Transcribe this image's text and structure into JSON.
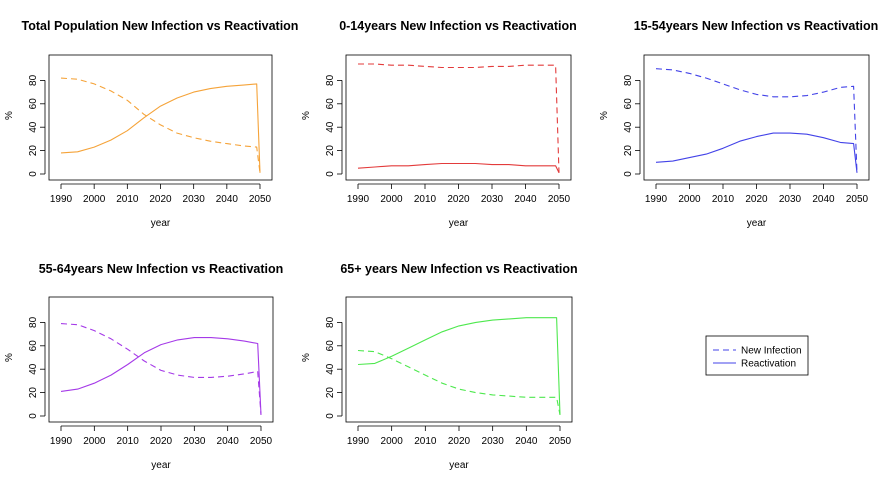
{
  "chart_data": [
    {
      "type": "line",
      "title": "Total Population New Infection vs Reactivation",
      "xlabel": "year",
      "ylabel": "%",
      "xlim": [
        1990,
        2050
      ],
      "ylim": [
        0,
        100
      ],
      "xticks": [
        1990,
        2000,
        2010,
        2020,
        2030,
        2040,
        2050
      ],
      "yticks": [
        0,
        20,
        40,
        60,
        80
      ],
      "color": "#f5a339",
      "x": [
        1990,
        1995,
        2000,
        2005,
        2010,
        2015,
        2020,
        2025,
        2030,
        2035,
        2040,
        2045,
        2049,
        2050
      ],
      "series": [
        {
          "name": "New Infection",
          "linestyle": "dashed",
          "values": [
            82,
            81,
            77,
            71,
            63,
            51,
            42,
            35,
            31,
            28,
            26,
            24,
            23,
            1
          ]
        },
        {
          "name": "Reactivation",
          "linestyle": "solid",
          "values": [
            18,
            19,
            23,
            29,
            37,
            48,
            58,
            65,
            70,
            73,
            75,
            76,
            77,
            1
          ]
        }
      ]
    },
    {
      "type": "line",
      "title": "0-14years  New Infection vs Reactivation",
      "xlabel": "year",
      "ylabel": "%",
      "xlim": [
        1990,
        2050
      ],
      "ylim": [
        0,
        100
      ],
      "xticks": [
        1990,
        2000,
        2010,
        2020,
        2030,
        2040,
        2050
      ],
      "yticks": [
        0,
        20,
        40,
        60,
        80
      ],
      "color": "#e33b3b",
      "x": [
        1990,
        1995,
        2000,
        2005,
        2010,
        2015,
        2020,
        2025,
        2030,
        2035,
        2040,
        2045,
        2049,
        2050
      ],
      "series": [
        {
          "name": "New Infection",
          "linestyle": "dashed",
          "values": [
            94,
            94,
            93,
            93,
            92,
            91,
            91,
            91,
            92,
            92,
            93,
            93,
            93,
            1
          ]
        },
        {
          "name": "Reactivation",
          "linestyle": "solid",
          "values": [
            5,
            6,
            7,
            7,
            8,
            9,
            9,
            9,
            8,
            8,
            7,
            7,
            7,
            1
          ]
        }
      ]
    },
    {
      "type": "line",
      "title": "15-54years New Infection vs Reactivation",
      "xlabel": "year",
      "ylabel": "%",
      "xlim": [
        1990,
        2050
      ],
      "ylim": [
        0,
        100
      ],
      "xticks": [
        1990,
        2000,
        2010,
        2020,
        2030,
        2040,
        2050
      ],
      "yticks": [
        0,
        20,
        40,
        60,
        80
      ],
      "color": "#4343e8",
      "x": [
        1990,
        1995,
        2000,
        2005,
        2010,
        2015,
        2020,
        2025,
        2030,
        2035,
        2040,
        2045,
        2049,
        2050
      ],
      "series": [
        {
          "name": "New Infection",
          "linestyle": "dashed",
          "values": [
            90,
            89,
            86,
            82,
            77,
            72,
            68,
            66,
            66,
            67,
            70,
            74,
            75,
            1
          ]
        },
        {
          "name": "Reactivation",
          "linestyle": "solid",
          "values": [
            10,
            11,
            14,
            17,
            22,
            28,
            32,
            35,
            35,
            34,
            31,
            27,
            26,
            1
          ]
        }
      ]
    },
    {
      "type": "line",
      "title": "55-64years New Infection vs Reactivation",
      "xlabel": "year",
      "ylabel": "%",
      "xlim": [
        1990,
        2050
      ],
      "ylim": [
        0,
        100
      ],
      "xticks": [
        1990,
        2000,
        2010,
        2020,
        2030,
        2040,
        2050
      ],
      "yticks": [
        0,
        20,
        40,
        60,
        80
      ],
      "color": "#a53ae8",
      "x": [
        1990,
        1995,
        2000,
        2005,
        2010,
        2015,
        2020,
        2025,
        2030,
        2035,
        2040,
        2045,
        2049,
        2050
      ],
      "series": [
        {
          "name": "New Infection",
          "linestyle": "dashed",
          "values": [
            79,
            78,
            73,
            66,
            57,
            47,
            39,
            35,
            33,
            33,
            34,
            36,
            38,
            1
          ]
        },
        {
          "name": "Reactivation",
          "linestyle": "solid",
          "values": [
            21,
            23,
            28,
            35,
            44,
            54,
            61,
            65,
            67,
            67,
            66,
            64,
            62,
            1
          ]
        }
      ]
    },
    {
      "type": "line",
      "title": "65+ years New Infection vs Reactivation",
      "xlabel": "year",
      "ylabel": "%",
      "xlim": [
        1990,
        2050
      ],
      "ylim": [
        0,
        100
      ],
      "xticks": [
        1990,
        2000,
        2010,
        2020,
        2030,
        2040,
        2050
      ],
      "yticks": [
        0,
        20,
        40,
        60,
        80
      ],
      "color": "#4ee84e",
      "x": [
        1990,
        1995,
        2000,
        2005,
        2010,
        2015,
        2020,
        2025,
        2030,
        2035,
        2040,
        2045,
        2049,
        2050
      ],
      "series": [
        {
          "name": "New Infection",
          "linestyle": "dashed",
          "values": [
            56,
            55,
            49,
            42,
            35,
            28,
            23,
            20,
            18,
            17,
            16,
            16,
            16,
            1
          ]
        },
        {
          "name": "Reactivation",
          "linestyle": "solid",
          "values": [
            44,
            45,
            51,
            58,
            65,
            72,
            77,
            80,
            82,
            83,
            84,
            84,
            84,
            1
          ]
        }
      ]
    }
  ],
  "legend": {
    "placement": "bottom-right",
    "color": "#4343e8",
    "items": [
      {
        "label": "New Infection",
        "linestyle": "dashed"
      },
      {
        "label": "Reactivation",
        "linestyle": "solid"
      }
    ]
  }
}
